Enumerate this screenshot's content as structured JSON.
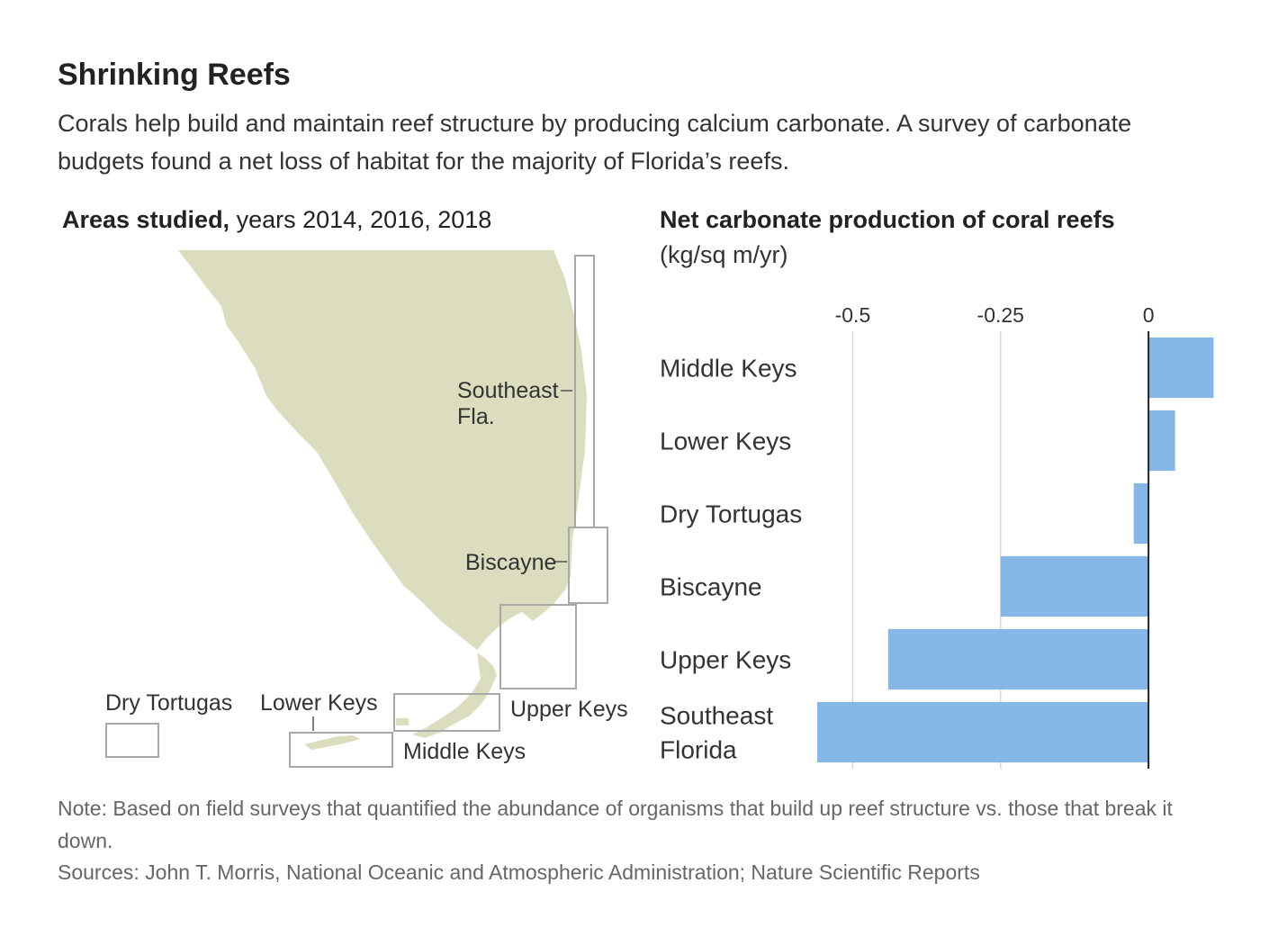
{
  "header": {
    "title": "Shrinking Reefs",
    "subtitle": "Corals help build and maintain reef structure by producing calcium carbonate. A survey of carbonate budgets found a net loss of habitat for the majority of Florida’s reefs."
  },
  "map": {
    "heading_bold": "Areas studied,",
    "heading_rest": " years 2014, 2016, 2018",
    "land_color": "#dcdcbe",
    "labels": {
      "southeast_line1": "Southeast",
      "southeast_line2": "Fla.",
      "biscayne": "Biscayne",
      "upper_keys": "Upper Keys",
      "middle_keys": "Middle Keys",
      "lower_keys": "Lower Keys",
      "dry_tortugas": "Dry Tortugas"
    }
  },
  "chart_data": {
    "type": "bar",
    "orientation": "horizontal",
    "title": "Net carbonate production of coral reefs",
    "unit": "(kg/sq m/yr)",
    "xlim": [
      -0.56,
      0.12
    ],
    "ticks": [
      -0.5,
      -0.25,
      0
    ],
    "tick_labels": [
      "-0.5",
      "-0.25",
      "0"
    ],
    "categories": [
      "Middle Keys",
      "Lower Keys",
      "Dry Tortugas",
      "Biscayne",
      "Upper Keys",
      "Southeast Florida"
    ],
    "category_lines": [
      [
        "Middle Keys"
      ],
      [
        "Lower Keys"
      ],
      [
        "Dry Tortugas"
      ],
      [
        "Biscayne"
      ],
      [
        "Upper Keys"
      ],
      [
        "Southeast",
        "Florida"
      ]
    ],
    "values": [
      0.11,
      0.045,
      -0.025,
      -0.25,
      -0.44,
      -0.56
    ],
    "bar_color": "#85b8e6",
    "grid": true
  },
  "footer": {
    "note": "Note: Based on field surveys that quantified the abundance of organisms that build up reef structure  vs. those that break it down.",
    "sources": "Sources: John T. Morris, National Oceanic and Atmospheric Administration; Nature Scientific Reports"
  }
}
